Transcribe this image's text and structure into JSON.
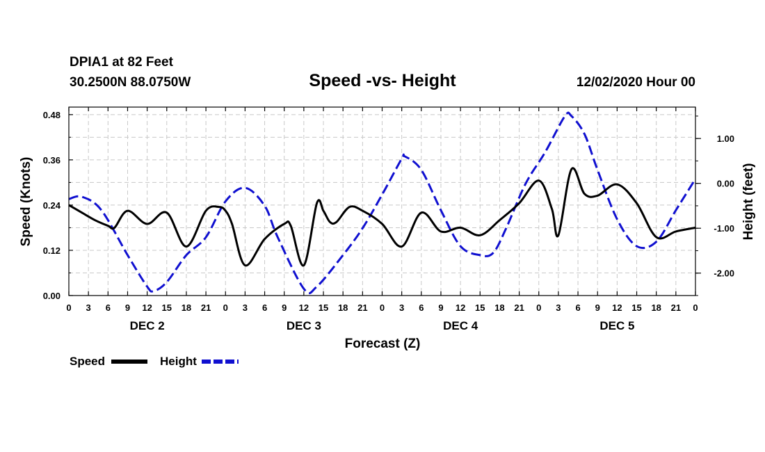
{
  "chart_data": {
    "type": "line",
    "title": "Speed -vs- Height",
    "station": "DPIA1 at 82 Feet",
    "coords": "30.2500N 88.0750W",
    "issued": "12/02/2020 Hour 00",
    "xlabel": "Forecast (Z)",
    "ylabel_left": "Speed (Knots)",
    "ylabel_right": "Height (feet)",
    "x_range_hours": [
      0,
      96
    ],
    "y_left_range": [
      0,
      0.5
    ],
    "y_right_range": [
      -2.5,
      1.7
    ],
    "hour_ticks": [
      "0",
      "3",
      "6",
      "9",
      "12",
      "15",
      "18",
      "21",
      "0",
      "3",
      "6",
      "9",
      "12",
      "15",
      "18",
      "21",
      "0",
      "3",
      "6",
      "9",
      "12",
      "15",
      "18",
      "21",
      "0",
      "3",
      "6",
      "9",
      "12",
      "15",
      "18",
      "21",
      "0"
    ],
    "day_labels": [
      "DEC 2",
      "DEC 3",
      "DEC 4",
      "DEC 5"
    ],
    "y_left_ticks": [
      "0.00",
      "0.12",
      "0.24",
      "0.36",
      "0.48"
    ],
    "y_right_ticks": [
      "1.00",
      "0.00",
      "-1.00",
      "-2.00"
    ],
    "legend": [
      "Speed",
      "Height"
    ],
    "colors": {
      "speed": "#000000",
      "height": "#1010d0",
      "grid": "#c8c8c8"
    },
    "series": [
      {
        "name": "Speed",
        "x": [
          0,
          2,
          4,
          6,
          7,
          9,
          12,
          15,
          18,
          21,
          23,
          24,
          25,
          27,
          30,
          33,
          34,
          36,
          38,
          39,
          40,
          41,
          43,
          45,
          48,
          51,
          54,
          57,
          60,
          63,
          66,
          69,
          72,
          74,
          75,
          77,
          79,
          81,
          84,
          87,
          90,
          93,
          96
        ],
        "values": [
          0.24,
          0.22,
          0.2,
          0.185,
          0.18,
          0.225,
          0.19,
          0.22,
          0.13,
          0.225,
          0.235,
          0.225,
          0.19,
          0.08,
          0.15,
          0.19,
          0.185,
          0.08,
          0.245,
          0.225,
          0.195,
          0.195,
          0.235,
          0.225,
          0.19,
          0.13,
          0.22,
          0.17,
          0.18,
          0.16,
          0.2,
          0.245,
          0.305,
          0.23,
          0.16,
          0.335,
          0.27,
          0.265,
          0.295,
          0.245,
          0.155,
          0.17,
          0.18
        ]
      },
      {
        "name": "Height",
        "x": [
          0,
          2,
          5,
          9,
          12,
          13,
          15,
          18,
          21,
          24,
          27,
          30,
          32,
          36,
          38,
          42,
          45,
          48,
          51,
          51.5,
          54,
          57,
          60,
          63,
          65,
          67,
          70,
          73,
          76,
          77,
          79,
          81,
          84,
          87,
          90,
          93,
          96
        ],
        "values": [
          -0.35,
          -0.3,
          -0.6,
          -1.6,
          -2.3,
          -2.4,
          -2.2,
          -1.6,
          -1.2,
          -0.4,
          -0.1,
          -0.5,
          -1.2,
          -2.35,
          -2.3,
          -1.6,
          -1.0,
          -0.25,
          0.55,
          0.6,
          0.3,
          -0.6,
          -1.4,
          -1.6,
          -1.55,
          -1.0,
          0.0,
          0.7,
          1.5,
          1.5,
          1.1,
          0.3,
          -0.8,
          -1.4,
          -1.3,
          -0.6,
          0.1
        ]
      }
    ]
  }
}
